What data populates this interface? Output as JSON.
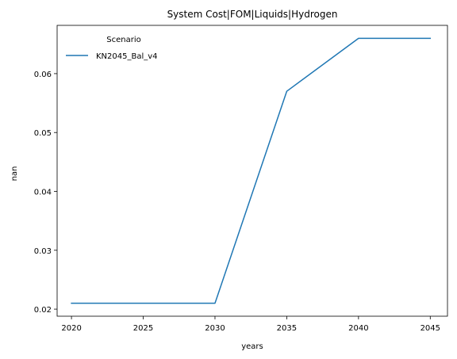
{
  "chart_data": {
    "type": "line",
    "title": "System Cost|FOM|Liquids|Hydrogen",
    "xlabel": "years",
    "ylabel": "nan",
    "x": [
      2020,
      2025,
      2030,
      2035,
      2040,
      2045
    ],
    "series": [
      {
        "name": "KN2045_Bal_v4",
        "color": "#1f77b4",
        "values": [
          0.021,
          0.021,
          0.021,
          0.057,
          0.066,
          0.066
        ]
      }
    ],
    "xlim": [
      2019,
      2046.2
    ],
    "ylim": [
      0.0188,
      0.0682
    ],
    "xticks": [
      "2020",
      "2025",
      "2030",
      "2035",
      "2040",
      "2045"
    ],
    "yticks": [
      "0.02",
      "0.03",
      "0.04",
      "0.05",
      "0.06"
    ],
    "legend": {
      "title": "Scenario",
      "placement": "top-left",
      "frame": false
    },
    "grid": false
  }
}
